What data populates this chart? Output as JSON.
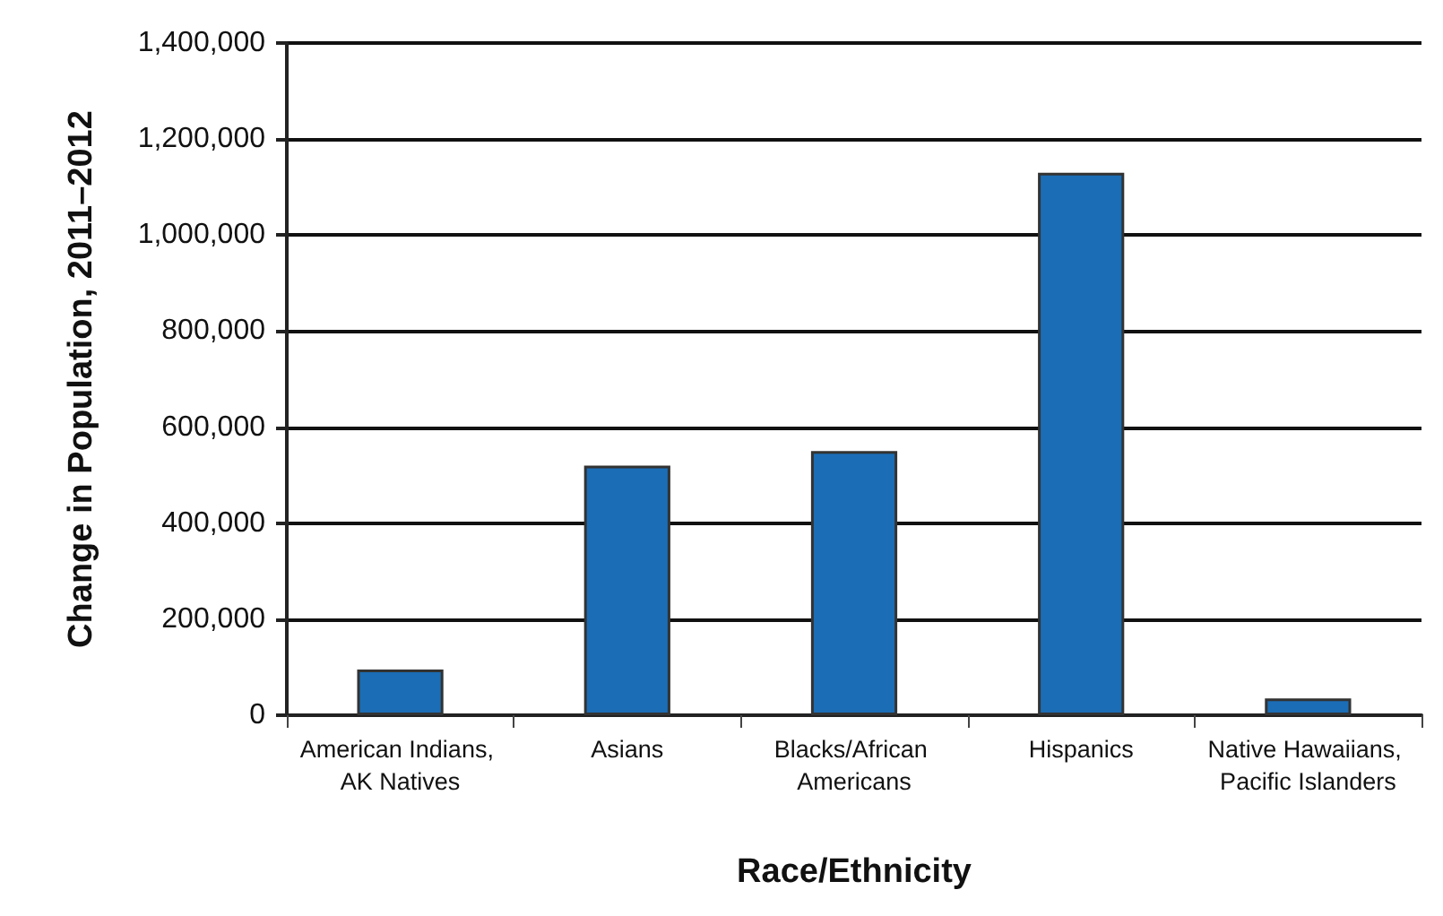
{
  "chart_data": {
    "type": "bar",
    "xlabel": "Race/Ethnicity",
    "ylabel": "Change in Population, 2011–2012",
    "categories": [
      "American Indians, AK Natives",
      "Asians",
      "Blacks/African Americans",
      "Hispanics",
      "Native Hawaiians, Pacific Islanders"
    ],
    "values": [
      95000,
      520000,
      550000,
      1130000,
      35000
    ],
    "color": "#1b6db5",
    "ylim": [
      0,
      1400000
    ],
    "yticks": [
      0,
      {
        "value": 200000,
        "label": "200,000"
      },
      {
        "value": 400000,
        "label": "400,000"
      },
      {
        "value": 600000,
        "label": "600,000"
      },
      {
        "value": 800000,
        "label": "800,000"
      },
      {
        "value": 1000000,
        "label": "1,000,000"
      },
      {
        "value": 1200000,
        "label": "1,200,000"
      },
      {
        "value": 1400000,
        "label": "1,400,000"
      }
    ],
    "grid": "y"
  }
}
